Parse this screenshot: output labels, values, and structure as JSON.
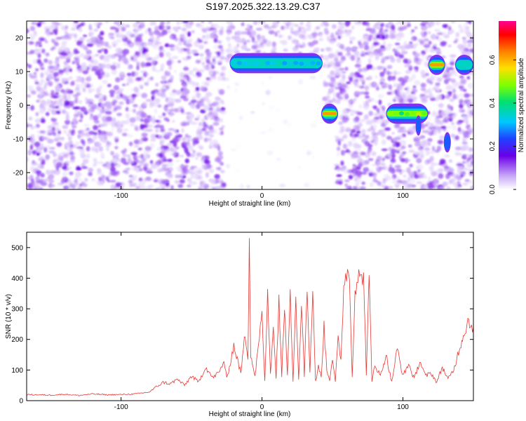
{
  "title": "S197.2025.322.13.29.C37",
  "colors": {
    "signal": "#e53935",
    "axis": "#000000",
    "blob_base": "#7a1fe0"
  },
  "chart_data": [
    {
      "type": "heatmap",
      "title": "S197.2025.322.13.29.C37",
      "xlabel": "Height of straight line (km)",
      "ylabel": "Frequency (Hz)",
      "xlim": [
        -167,
        150
      ],
      "ylim": [
        -25,
        25
      ],
      "xticks": [
        -100,
        0,
        100
      ],
      "xtick_labels": [
        "-100",
        "0",
        "100"
      ],
      "yticks": [
        -20,
        -10,
        0,
        10,
        20
      ],
      "ytick_labels": [
        "-20",
        "-10",
        "0",
        "10",
        "20"
      ],
      "colorbar": {
        "label": "Normalized spectral amplitude",
        "range": [
          0,
          0.78
        ],
        "ticks": [
          0.0,
          0.2,
          0.4,
          0.6
        ],
        "tick_labels": [
          "0.0",
          "0.2",
          "0.4",
          "0.6"
        ],
        "colormap": "rainbow (white-violet-blue-cyan-green-yellow-orange-red-magenta)"
      },
      "noise_regions": [
        {
          "x_range": [
            -167,
            -27
          ],
          "y_range": [
            -25,
            25
          ],
          "amplitude_range": [
            0.02,
            0.12
          ]
        },
        {
          "x_range": [
            -25,
            43
          ],
          "y_range": [
            13,
            25
          ],
          "amplitude_range": [
            0.02,
            0.08
          ]
        },
        {
          "x_range": [
            -25,
            43
          ],
          "y_range": [
            -25,
            9
          ],
          "amplitude_range": [
            0.0,
            0.03
          ]
        },
        {
          "x_range": [
            43,
            53
          ],
          "y_range": [
            0,
            25
          ],
          "amplitude_range": [
            0.02,
            0.08
          ]
        },
        {
          "x_range": [
            53,
            150
          ],
          "y_range": [
            -25,
            25
          ],
          "amplitude_range": [
            0.02,
            0.12
          ]
        }
      ],
      "features": [
        {
          "x_range": [
            -22,
            42
          ],
          "freq": 12.5,
          "peak_amplitude": 0.35
        },
        {
          "x_range": [
            43,
            53
          ],
          "freq": -2.5,
          "peak_amplitude": 0.72
        },
        {
          "x_range": [
            89,
            117
          ],
          "freq": -2.5,
          "peak_amplitude": 0.5
        },
        {
          "x_range": [
            110,
            112
          ],
          "freq": -6.0,
          "peak_amplitude": 0.3
        },
        {
          "x_range": [
            119,
            129
          ],
          "freq": 12.0,
          "peak_amplitude": 0.7
        },
        {
          "x_range": [
            130,
            133
          ],
          "freq": -11.0,
          "peak_amplitude": 0.25
        },
        {
          "x_range": [
            138,
            149
          ],
          "freq": 12.0,
          "peak_amplitude": 0.38
        }
      ]
    },
    {
      "type": "line",
      "xlabel": "Height of straight line (km)",
      "ylabel": "SNR (10 * v/v)",
      "xlim": [
        -167,
        150
      ],
      "ylim": [
        0,
        550
      ],
      "xticks": [
        -100,
        0,
        100
      ],
      "xtick_labels": [
        "-100",
        "0",
        "100"
      ],
      "yticks": [
        0,
        100,
        200,
        300,
        400,
        500
      ],
      "ytick_labels": [
        "0",
        "100",
        "200",
        "300",
        "400",
        "500"
      ],
      "series": [
        {
          "name": "SNR",
          "color": "#e53935",
          "x": [
            -167,
            -150,
            -140,
            -130,
            -120,
            -110,
            -100,
            -90,
            -80,
            -75,
            -70,
            -65,
            -60,
            -55,
            -50,
            -45,
            -40,
            -35,
            -30,
            -27,
            -25,
            -20,
            -15,
            -12,
            -10,
            -9,
            -8,
            -5,
            0,
            2,
            4,
            6,
            8,
            10,
            12,
            14,
            16,
            18,
            20,
            22,
            24,
            26,
            28,
            30,
            32,
            34,
            36,
            38,
            40,
            42,
            44,
            46,
            48,
            50,
            52,
            54,
            56,
            58,
            60,
            62,
            64,
            66,
            68,
            70,
            72,
            74,
            76,
            78,
            80,
            84,
            88,
            92,
            96,
            100,
            104,
            108,
            112,
            116,
            120,
            124,
            128,
            132,
            136,
            140,
            144,
            146,
            148,
            150
          ],
          "y": [
            20,
            18,
            21,
            17,
            22,
            19,
            20,
            22,
            28,
            45,
            60,
            55,
            70,
            50,
            80,
            60,
            110,
            75,
            95,
            130,
            70,
            180,
            90,
            220,
            140,
            550,
            150,
            80,
            280,
            60,
            350,
            90,
            250,
            70,
            340,
            80,
            310,
            90,
            370,
            60,
            350,
            70,
            330,
            80,
            380,
            90,
            360,
            60,
            110,
            80,
            240,
            100,
            70,
            140,
            60,
            200,
            130,
            380,
            420,
            410,
            80,
            360,
            410,
            390,
            420,
            90,
            400,
            60,
            120,
            80,
            150,
            60,
            170,
            80,
            120,
            70,
            130,
            80,
            90,
            60,
            110,
            70,
            100,
            170,
            230,
            260,
            250,
            240
          ]
        }
      ]
    }
  ]
}
